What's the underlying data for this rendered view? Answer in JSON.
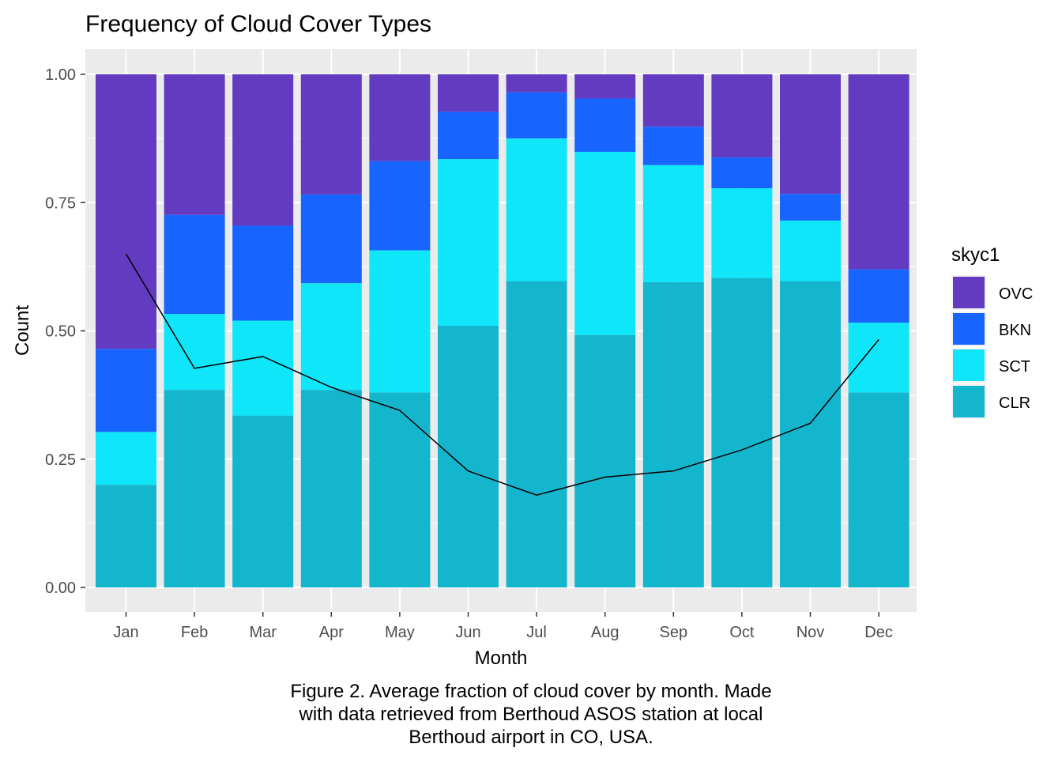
{
  "chart_data": {
    "type": "bar",
    "stacked": true,
    "title": "Frequency of Cloud Cover Types",
    "xlabel": "Month",
    "ylabel": "Count",
    "ylim": [
      0,
      1
    ],
    "yticks": [
      "0.00",
      "0.25",
      "0.50",
      "0.75",
      "1.00"
    ],
    "ytick_values": [
      0,
      0.25,
      0.5,
      0.75,
      1.0
    ],
    "grid": true,
    "categories": [
      "Jan",
      "Feb",
      "Mar",
      "Apr",
      "May",
      "Jun",
      "Jul",
      "Aug",
      "Sep",
      "Oct",
      "Nov",
      "Dec"
    ],
    "legend": {
      "title": "skyc1",
      "position": "right",
      "entries": [
        "OVC",
        "BKN",
        "SCT",
        "CLR"
      ]
    },
    "series": [
      {
        "name": "CLR",
        "color": "#14B6CE",
        "values": [
          0.2,
          0.385,
          0.335,
          0.385,
          0.38,
          0.51,
          0.597,
          0.492,
          0.595,
          0.603,
          0.597,
          0.38
        ]
      },
      {
        "name": "SCT",
        "color": "#0FE6FA",
        "values": [
          0.103,
          0.148,
          0.185,
          0.208,
          0.277,
          0.325,
          0.278,
          0.357,
          0.228,
          0.175,
          0.118,
          0.136
        ]
      },
      {
        "name": "BKN",
        "color": "#1764FF",
        "values": [
          0.162,
          0.193,
          0.185,
          0.173,
          0.174,
          0.092,
          0.09,
          0.104,
          0.075,
          0.06,
          0.052,
          0.104
        ]
      },
      {
        "name": "OVC",
        "color": "#633BC0",
        "values": [
          0.535,
          0.274,
          0.295,
          0.234,
          0.169,
          0.073,
          0.035,
          0.047,
          0.102,
          0.162,
          0.233,
          0.38
        ]
      }
    ],
    "line": {
      "color": "#000000",
      "values": [
        0.65,
        0.427,
        0.45,
        0.39,
        0.345,
        0.227,
        0.18,
        0.215,
        0.227,
        0.268,
        0.32,
        0.483
      ]
    },
    "caption_lines": [
      "Figure 2. Average fraction of cloud cover by month. Made",
      "with data retrieved from Berthoud ASOS station at local",
      "Berthoud airport in CO, USA."
    ]
  }
}
